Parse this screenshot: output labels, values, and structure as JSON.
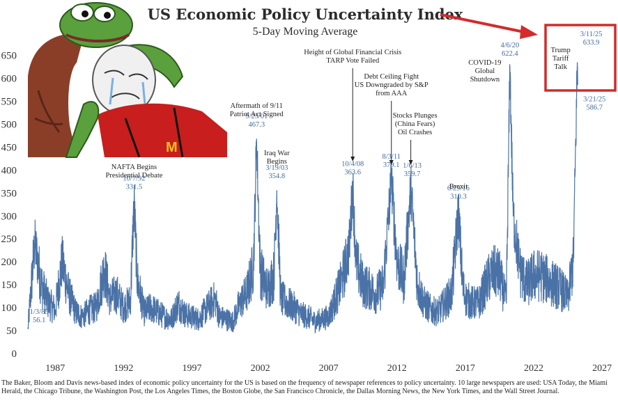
{
  "chart_data": {
    "type": "line",
    "title": "US Economic Policy Uncertainty Index",
    "subtitle": "5-Day Moving Average",
    "xlabel": "",
    "ylabel": "",
    "xlim": [
      1985.0,
      2027.3
    ],
    "ylim": [
      0,
      660
    ],
    "x_ticks": [
      "1987",
      "1992",
      "1997",
      "2002",
      "2007",
      "2012",
      "2017",
      "2022",
      "2027"
    ],
    "y_ticks": [
      "0",
      "50",
      "100",
      "150",
      "200",
      "250",
      "300",
      "350",
      "400",
      "450",
      "500",
      "550",
      "600",
      "650"
    ],
    "grid": false,
    "series": [
      {
        "color": "#4a72a6",
        "x": [
          1985.01,
          1985.5,
          1986.0,
          1986.5,
          1987.0,
          1987.5,
          1988.0,
          1988.5,
          1989.0,
          1989.5,
          1990.0,
          1990.6,
          1991.0,
          1991.5,
          1992.0,
          1992.5,
          1992.77,
          1993.0,
          1993.5,
          1994.0,
          1994.5,
          1995.0,
          1995.5,
          1996.0,
          1996.5,
          1997.0,
          1997.5,
          1998.0,
          1998.7,
          1999.0,
          1999.5,
          2000.0,
          2000.5,
          2001.0,
          2001.5,
          2001.73,
          2002.0,
          2002.5,
          2003.0,
          2003.21,
          2003.5,
          2004.0,
          2004.5,
          2005.0,
          2005.5,
          2006.0,
          2006.5,
          2007.0,
          2007.5,
          2008.0,
          2008.5,
          2008.76,
          2009.0,
          2009.5,
          2010.0,
          2010.5,
          2011.0,
          2011.59,
          2012.0,
          2012.5,
          2013.01,
          2013.5,
          2014.0,
          2014.5,
          2015.0,
          2015.5,
          2016.0,
          2016.49,
          2016.8,
          2017.0,
          2017.5,
          2018.0,
          2018.5,
          2019.0,
          2019.5,
          2020.0,
          2020.26,
          2020.5,
          2021.0,
          2021.5,
          2022.0,
          2022.5,
          2023.0,
          2023.5,
          2024.0,
          2024.5,
          2024.9,
          2025.19,
          2025.22
        ],
        "y": [
          56.1,
          240,
          150,
          110,
          95,
          200,
          130,
          90,
          80,
          95,
          100,
          185,
          120,
          130,
          100,
          115,
          331.5,
          160,
          90,
          100,
          90,
          80,
          75,
          110,
          85,
          80,
          75,
          95,
          120,
          80,
          75,
          70,
          110,
          130,
          190,
          467.3,
          180,
          140,
          170,
          354.8,
          120,
          110,
          100,
          85,
          80,
          70,
          75,
          80,
          120,
          160,
          230,
          363.6,
          200,
          150,
          140,
          130,
          150,
          379.1,
          200,
          160,
          359.7,
          150,
          110,
          95,
          90,
          110,
          130,
          310.3,
          150,
          120,
          110,
          110,
          150,
          180,
          170,
          110,
          622.4,
          300,
          180,
          150,
          170,
          170,
          160,
          150,
          140,
          120,
          200,
          633.9,
          586.7
        ]
      }
    ],
    "annotations": [
      {
        "x": 1985.01,
        "y": 56.1,
        "date": "1/3/85",
        "value": "56.1",
        "label": []
      },
      {
        "x": 1992.77,
        "y": 331.5,
        "date": "10/7/92",
        "value": "331.5",
        "label": [
          "NAFTA Begins",
          "Presidential Debate"
        ]
      },
      {
        "x": 2001.73,
        "y": 467.3,
        "date": "9/23/01",
        "value": "467.3",
        "label": [
          "Aftermath of 9/11",
          "Patriot Act Signed"
        ]
      },
      {
        "x": 2003.21,
        "y": 354.8,
        "date": "3/19/03",
        "value": "354.8",
        "label": [
          "Iraq War",
          "Begins"
        ]
      },
      {
        "x": 2008.76,
        "y": 363.6,
        "date": "10/4/08",
        "value": "363.6",
        "label": [
          "Height of Global Financial Crisis",
          "TARP Vote Failed"
        ]
      },
      {
        "x": 2011.59,
        "y": 379.1,
        "date": "8/3/11",
        "value": "379.1",
        "label": [
          "Debt Ceiling Fight",
          "US Downgraded by S&P",
          "from AAA"
        ]
      },
      {
        "x": 2013.01,
        "y": 359.7,
        "date": "1/6/13",
        "value": "359.7",
        "label": [
          "Stocks Plunges",
          "(China Fears)",
          "Oil Crashes"
        ]
      },
      {
        "x": 2016.49,
        "y": 310.3,
        "date": "6/29/16",
        "value": "310.3",
        "label": [
          "Brexit"
        ]
      },
      {
        "x": 2020.26,
        "y": 622.4,
        "date": "4/6/20",
        "value": "622.4",
        "label": [
          "COVID-19",
          "Global",
          "Shutdown"
        ]
      },
      {
        "x": 2025.19,
        "y": 633.9,
        "date": "3/11/25",
        "value": "633.9",
        "label": [
          "Trump",
          "Tariff",
          "Talk"
        ]
      },
      {
        "x": 2025.22,
        "y": 586.7,
        "date": "3/21/25",
        "value": "586.7",
        "label": []
      }
    ]
  },
  "highlight": {
    "box_color": "#d42a2a",
    "arrow_color": "#d42a2a",
    "target": "Trump Tariff Talk"
  },
  "meme_image": {
    "description_icon": "frog-hugging-crying-man-meme-icon",
    "logo_text": "M"
  },
  "footer": {
    "text": "The Baker, Bloom and Davis news-based index of economic policy uncertainty for the US is based on the frequency of newspaper references to policy uncertainty. 10 large newspapers are used: USA Today, the Miami Herald, the Chicago Tribune, the Washington Post, the Los Angeles Times, the Boston Globe, the San Francisco Chronicle, the Dallas Morning News, the New York Times, and the Wall Street Journal."
  }
}
